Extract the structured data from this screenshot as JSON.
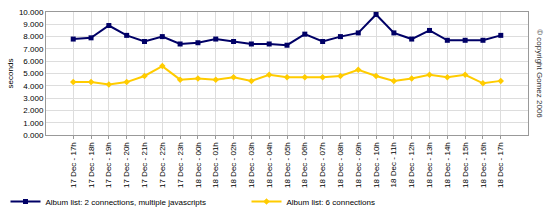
{
  "chart_data": {
    "type": "line",
    "y_label": "seconds",
    "annotations": [
      "© copyright Gomez 2006"
    ],
    "categories": [
      "17 Dec - 17h",
      "17 Dec - 18h",
      "17 Dec - 19h",
      "17 Dec - 20h",
      "17 Dec - 21h",
      "17 Dec - 22h",
      "17 Dec - 23h",
      "18 Dec - 00h",
      "18 Dec - 01h",
      "18 Dec - 02h",
      "18 Dec - 03h",
      "18 Dec - 04h",
      "18 Dec - 05h",
      "18 Dec - 06h",
      "18 Dec - 07h",
      "18 Dec - 08h",
      "18 Dec - 09h",
      "18 Dec - 10h",
      "18 Dec - 11h",
      "18 Dec - 12h",
      "18 Dec - 13h",
      "18 Dec - 14h",
      "18 Dec - 15h",
      "18 Dec - 16h",
      "18 Dec - 17h"
    ],
    "series": [
      {
        "name": "Album list: 2 connections, multiple javascripts",
        "color": "#000066",
        "marker": "square",
        "line_style": "solid",
        "values": [
          7.8,
          7.9,
          8.9,
          8.1,
          7.6,
          8.0,
          7.4,
          7.5,
          7.8,
          7.6,
          7.4,
          7.4,
          7.3,
          8.2,
          7.6,
          8.0,
          8.3,
          9.8,
          8.3,
          7.8,
          8.5,
          7.7,
          7.7,
          7.7,
          8.1
        ]
      },
      {
        "name": "Album list: 6 connections",
        "color": "#ffcc00",
        "marker": "diamond",
        "line_style": "solid",
        "values": [
          4.3,
          4.3,
          4.1,
          4.3,
          4.8,
          5.6,
          4.5,
          4.6,
          4.5,
          4.7,
          4.4,
          4.9,
          4.7,
          4.7,
          4.7,
          4.8,
          5.3,
          4.8,
          4.4,
          4.6,
          4.9,
          4.7,
          4.9,
          4.2,
          4.4
        ]
      }
    ],
    "ylim": [
      0,
      10
    ],
    "yticks": [
      {
        "value": 0,
        "label": "0.000"
      },
      {
        "value": 1,
        "label": "1.000"
      },
      {
        "value": 2,
        "label": "2.000"
      },
      {
        "value": 3,
        "label": "3.000"
      },
      {
        "value": 4,
        "label": "4.000"
      },
      {
        "value": 5,
        "label": "5.000"
      },
      {
        "value": 6,
        "label": "6.000"
      },
      {
        "value": 7,
        "label": "7.000"
      },
      {
        "value": 8,
        "label": "8.000"
      },
      {
        "value": 9,
        "label": "9.000"
      },
      {
        "value": 10,
        "label": "10.000"
      }
    ],
    "grid": true,
    "legend": "bottom"
  }
}
